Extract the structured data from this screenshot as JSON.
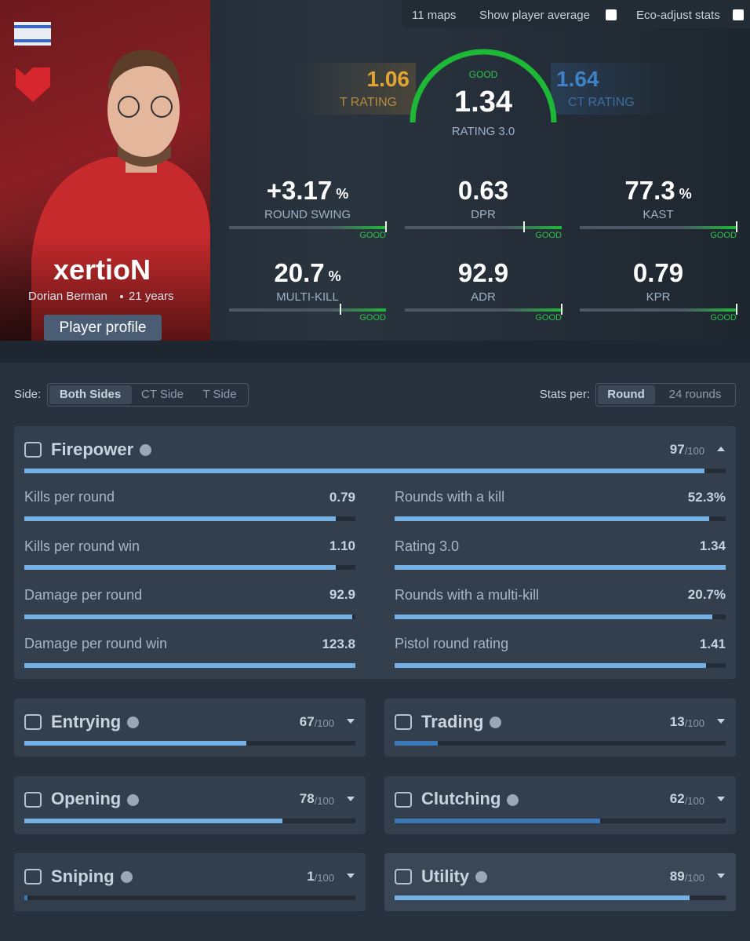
{
  "top_bar": {
    "maps": "11 maps",
    "show_average": "Show player average",
    "eco_adjust": "Eco-adjust stats"
  },
  "player": {
    "nickname": "xertioN",
    "name": "Dorian Berman",
    "age": "21 years",
    "profile_button": "Player profile"
  },
  "rating": {
    "t_value": "1.06",
    "t_label": "T RATING",
    "badge": "GOOD",
    "value": "1.34",
    "label": "RATING 3.0",
    "ct_value": "1.64",
    "ct_label": "CT RATING"
  },
  "summary": [
    {
      "value": "+3.17",
      "unit": "%",
      "label": "ROUND SWING",
      "badge": "GOOD",
      "marker": 100
    },
    {
      "value": "0.63",
      "label": "DPR",
      "badge": "GOOD",
      "marker": 76
    },
    {
      "value": "77.3",
      "unit": "%",
      "label": "KAST",
      "badge": "GOOD",
      "marker": 100
    },
    {
      "value": "20.7",
      "unit": "%",
      "label": "MULTI-KILL",
      "badge": "GOOD",
      "marker": 71
    },
    {
      "value": "92.9",
      "label": "ADR",
      "badge": "GOOD",
      "marker": 100
    },
    {
      "value": "0.79",
      "label": "KPR",
      "badge": "GOOD",
      "marker": 100
    }
  ],
  "filters": {
    "side_label": "Side:",
    "sides": [
      "Both Sides",
      "CT Side",
      "T Side"
    ],
    "per_label": "Stats per:",
    "per": [
      "Round",
      "24 rounds"
    ]
  },
  "max": {
    "value": 100,
    "label": "/100"
  },
  "firepower": {
    "title": "Firepower",
    "score": 97,
    "color": "#74b0e3",
    "stats": [
      {
        "label": "Kills per round",
        "value": "0.79",
        "bar": 94
      },
      {
        "label": "Rounds with a kill",
        "value": "52.3%",
        "bar": 95
      },
      {
        "label": "Kills per round win",
        "value": "1.10",
        "bar": 94
      },
      {
        "label": "Rating 3.0",
        "value": "1.34",
        "bar": 100
      },
      {
        "label": "Damage per round",
        "value": "92.9",
        "bar": 99
      },
      {
        "label": "Rounds with a multi-kill",
        "value": "20.7%",
        "bar": 96
      },
      {
        "label": "Damage per round win",
        "value": "123.8",
        "bar": 100
      },
      {
        "label": "Pistol round rating",
        "value": "1.41",
        "bar": 94
      }
    ]
  },
  "categories": [
    {
      "title": "Entrying",
      "score": 67,
      "color": "#74b0e3"
    },
    {
      "title": "Trading",
      "score": 13,
      "color": "#3a78b8"
    },
    {
      "title": "Opening",
      "score": 78,
      "color": "#74b0e3"
    },
    {
      "title": "Clutching",
      "score": 62,
      "color": "#3a78b8"
    },
    {
      "title": "Sniping",
      "score": 1,
      "color": "#3a78b8"
    },
    {
      "title": "Utility",
      "score": 89,
      "color": "#74b0e3"
    }
  ]
}
